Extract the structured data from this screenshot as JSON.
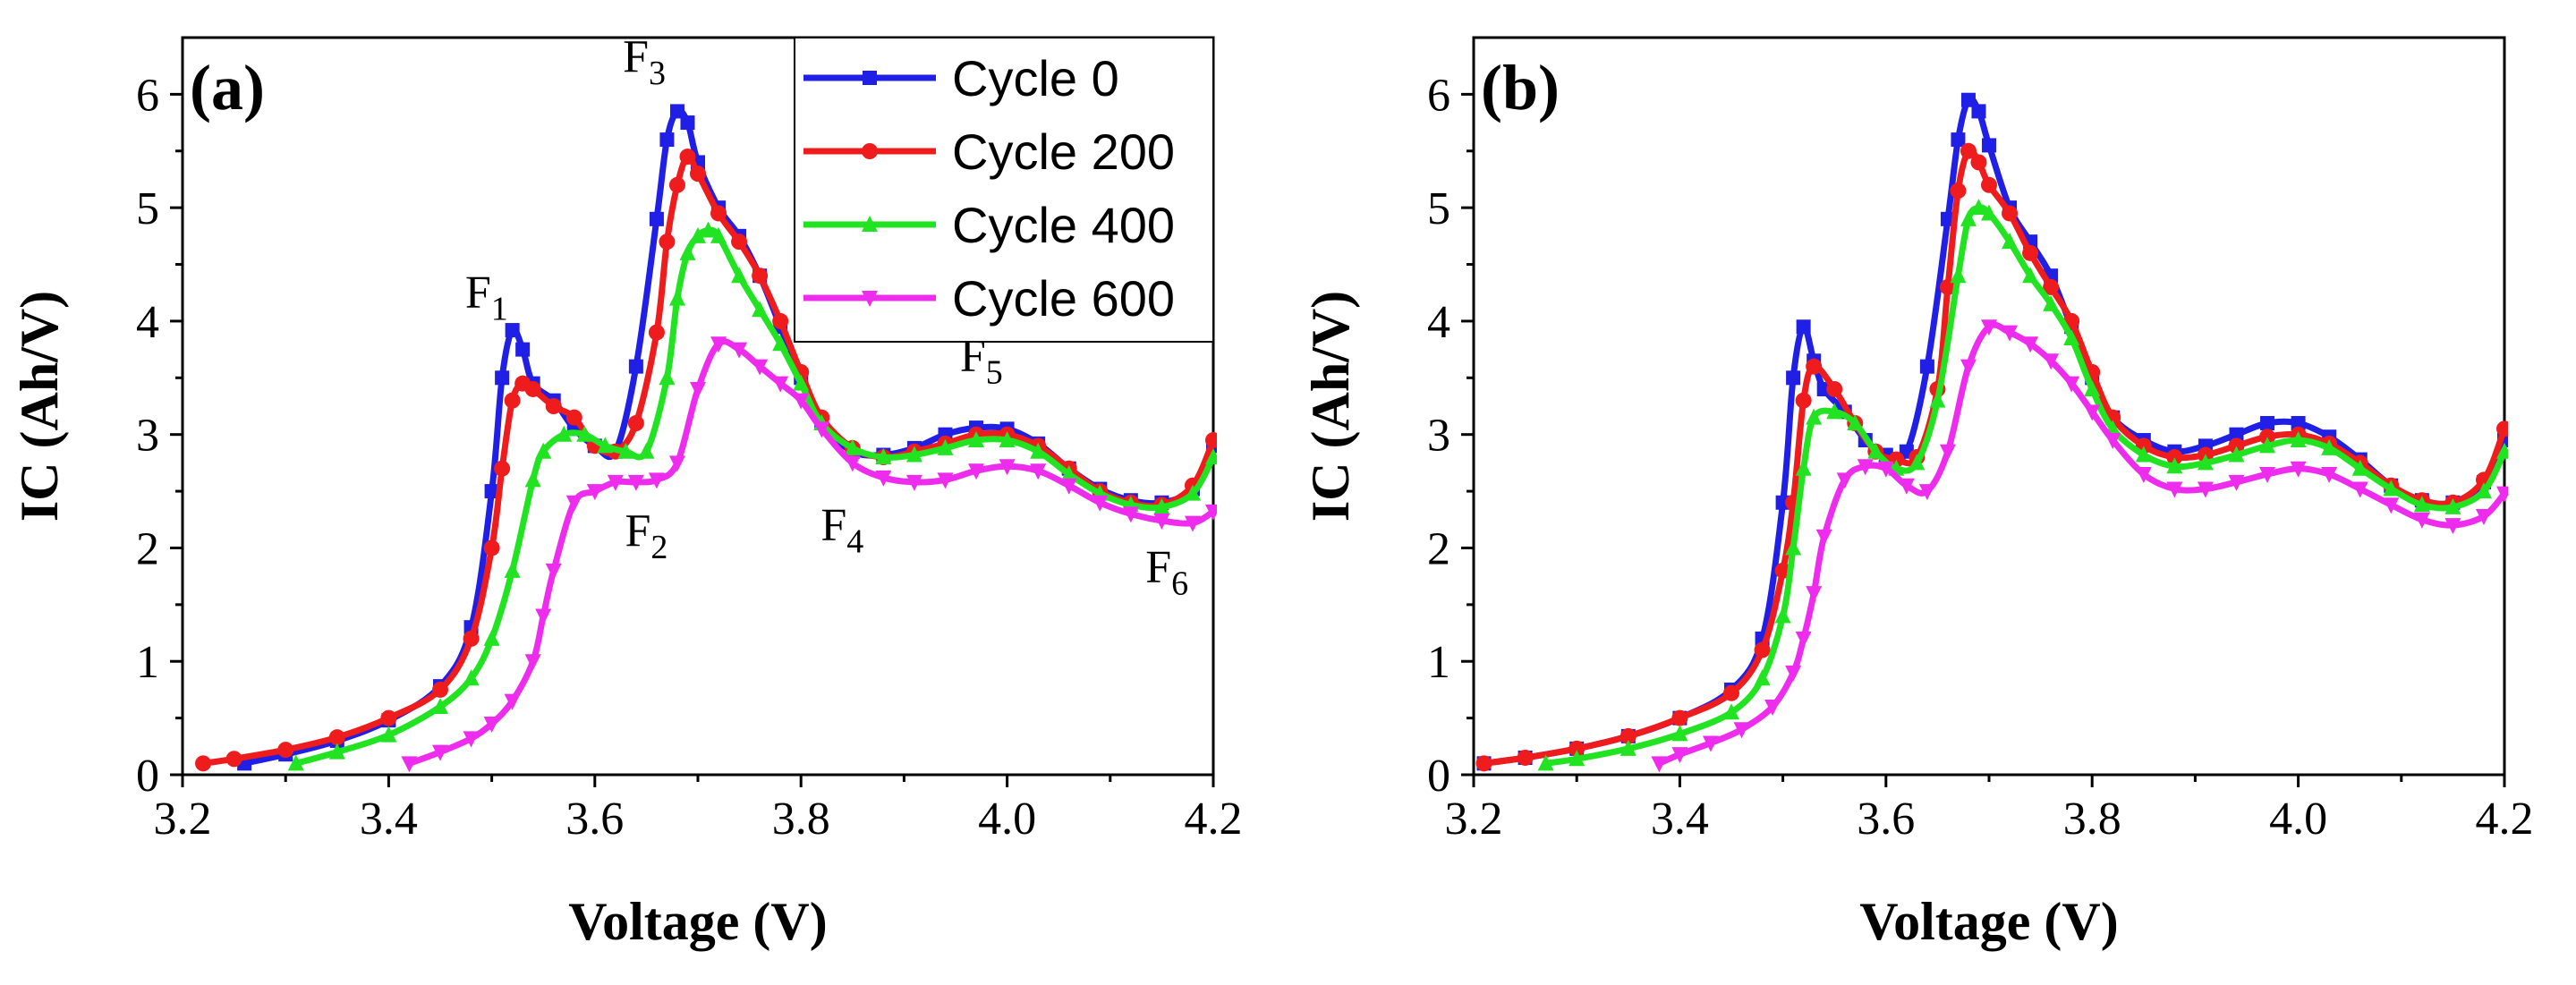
{
  "colors": {
    "cycle0": "#1f1fe6",
    "cycle200": "#ee1c1c",
    "cycle400": "#22e322",
    "cycle600": "#ee2cee"
  },
  "chart_data": [
    {
      "type": "line",
      "panel_label": "(a)",
      "xlabel": "Voltage (V)",
      "ylabel": "IC (Ah/V)",
      "xlim": [
        3.2,
        4.2
      ],
      "ylim": [
        0,
        6.5
      ],
      "xticks": [
        "3.2",
        "3.4",
        "3.6",
        "3.8",
        "4.0",
        "4.2"
      ],
      "yticks": [
        "0",
        "1",
        "2",
        "3",
        "4",
        "5",
        "6"
      ],
      "legend": {
        "placement": "top-right",
        "entries": [
          "Cycle 0",
          "Cycle 200",
          "Cycle 400",
          "Cycle 600"
        ]
      },
      "annotations": [
        {
          "base": "F",
          "sub": "1",
          "x": 3.495,
          "y": 4.12
        },
        {
          "base": "F",
          "sub": "2",
          "x": 3.65,
          "y": 2.02
        },
        {
          "base": "F",
          "sub": "3",
          "x": 3.648,
          "y": 6.2
        },
        {
          "base": "F",
          "sub": "4",
          "x": 3.84,
          "y": 2.07
        },
        {
          "base": "F",
          "sub": "5",
          "x": 3.975,
          "y": 3.56
        },
        {
          "base": "F",
          "sub": "6",
          "x": 4.155,
          "y": 1.7
        }
      ],
      "series": [
        {
          "name": "Cycle 0",
          "color_key": "cycle0",
          "marker": "square",
          "x": [
            3.26,
            3.3,
            3.35,
            3.4,
            3.45,
            3.48,
            3.5,
            3.51,
            3.52,
            3.53,
            3.54,
            3.56,
            3.58,
            3.6,
            3.62,
            3.64,
            3.66,
            3.67,
            3.68,
            3.69,
            3.7,
            3.72,
            3.74,
            3.76,
            3.78,
            3.8,
            3.82,
            3.85,
            3.88,
            3.91,
            3.94,
            3.97,
            4.0,
            4.03,
            4.06,
            4.09,
            4.12,
            4.15,
            4.18,
            4.2
          ],
          "y": [
            0.1,
            0.18,
            0.3,
            0.48,
            0.78,
            1.3,
            2.5,
            3.5,
            3.92,
            3.75,
            3.45,
            3.3,
            3.05,
            2.9,
            2.85,
            3.6,
            4.9,
            5.6,
            5.85,
            5.75,
            5.4,
            5.0,
            4.75,
            4.4,
            3.95,
            3.5,
            3.1,
            2.85,
            2.82,
            2.88,
            3.0,
            3.06,
            3.05,
            2.92,
            2.7,
            2.52,
            2.42,
            2.4,
            2.52,
            2.9
          ]
        },
        {
          "name": "Cycle 200",
          "color_key": "cycle200",
          "marker": "circle",
          "x": [
            3.22,
            3.25,
            3.3,
            3.35,
            3.4,
            3.45,
            3.48,
            3.5,
            3.51,
            3.52,
            3.53,
            3.54,
            3.56,
            3.58,
            3.6,
            3.62,
            3.64,
            3.66,
            3.67,
            3.68,
            3.69,
            3.7,
            3.72,
            3.74,
            3.76,
            3.78,
            3.8,
            3.82,
            3.85,
            3.88,
            3.91,
            3.94,
            3.97,
            4.0,
            4.03,
            4.06,
            4.09,
            4.12,
            4.15,
            4.18,
            4.2
          ],
          "y": [
            0.1,
            0.14,
            0.22,
            0.33,
            0.5,
            0.75,
            1.2,
            2.0,
            2.7,
            3.3,
            3.45,
            3.4,
            3.25,
            3.15,
            2.9,
            2.85,
            3.1,
            3.9,
            4.7,
            5.2,
            5.45,
            5.3,
            4.95,
            4.7,
            4.4,
            4.0,
            3.55,
            3.15,
            2.88,
            2.8,
            2.85,
            2.92,
            3.0,
            3.0,
            2.9,
            2.7,
            2.5,
            2.4,
            2.38,
            2.55,
            2.95
          ]
        },
        {
          "name": "Cycle 400",
          "color_key": "cycle400",
          "marker": "triangle-up",
          "x": [
            3.31,
            3.35,
            3.4,
            3.45,
            3.48,
            3.5,
            3.52,
            3.54,
            3.55,
            3.57,
            3.59,
            3.61,
            3.63,
            3.65,
            3.67,
            3.68,
            3.69,
            3.7,
            3.71,
            3.72,
            3.74,
            3.76,
            3.78,
            3.8,
            3.82,
            3.85,
            3.88,
            3.91,
            3.94,
            3.97,
            4.0,
            4.03,
            4.06,
            4.09,
            4.12,
            4.15,
            4.18,
            4.2
          ],
          "y": [
            0.1,
            0.2,
            0.35,
            0.6,
            0.85,
            1.2,
            1.8,
            2.6,
            2.85,
            3.0,
            3.0,
            2.9,
            2.85,
            2.85,
            3.5,
            4.2,
            4.6,
            4.75,
            4.8,
            4.75,
            4.4,
            4.1,
            3.8,
            3.45,
            3.1,
            2.88,
            2.8,
            2.82,
            2.88,
            2.95,
            2.95,
            2.85,
            2.65,
            2.48,
            2.38,
            2.36,
            2.48,
            2.8
          ]
        },
        {
          "name": "Cycle 600",
          "color_key": "cycle600",
          "marker": "triangle-down",
          "x": [
            3.42,
            3.45,
            3.48,
            3.5,
            3.52,
            3.54,
            3.55,
            3.56,
            3.58,
            3.6,
            3.62,
            3.64,
            3.66,
            3.68,
            3.7,
            3.72,
            3.74,
            3.76,
            3.78,
            3.8,
            3.82,
            3.85,
            3.88,
            3.91,
            3.94,
            3.97,
            4.0,
            4.03,
            4.06,
            4.09,
            4.12,
            4.15,
            4.18,
            4.2
          ],
          "y": [
            0.1,
            0.2,
            0.32,
            0.45,
            0.65,
            1.0,
            1.4,
            1.8,
            2.4,
            2.5,
            2.58,
            2.58,
            2.6,
            2.75,
            3.4,
            3.8,
            3.75,
            3.6,
            3.45,
            3.3,
            3.05,
            2.75,
            2.62,
            2.58,
            2.6,
            2.68,
            2.72,
            2.68,
            2.55,
            2.4,
            2.3,
            2.24,
            2.22,
            2.32
          ]
        }
      ]
    },
    {
      "type": "line",
      "panel_label": "(b)",
      "xlabel": "Voltage (V)",
      "ylabel": "IC (Ah/V)",
      "xlim": [
        3.2,
        4.2
      ],
      "ylim": [
        0,
        6.5
      ],
      "xticks": [
        "3.2",
        "3.4",
        "3.6",
        "3.8",
        "4.0",
        "4.2"
      ],
      "yticks": [
        "0",
        "1",
        "2",
        "3",
        "4",
        "5",
        "6"
      ],
      "series": [
        {
          "name": "Cycle 0",
          "color_key": "cycle0",
          "marker": "square",
          "x": [
            3.21,
            3.25,
            3.3,
            3.35,
            3.4,
            3.45,
            3.48,
            3.5,
            3.51,
            3.52,
            3.53,
            3.54,
            3.56,
            3.58,
            3.6,
            3.62,
            3.64,
            3.66,
            3.67,
            3.68,
            3.69,
            3.7,
            3.72,
            3.74,
            3.76,
            3.78,
            3.8,
            3.82,
            3.85,
            3.88,
            3.91,
            3.94,
            3.97,
            4.0,
            4.03,
            4.06,
            4.09,
            4.12,
            4.15,
            4.18,
            4.2
          ],
          "y": [
            0.1,
            0.15,
            0.23,
            0.34,
            0.5,
            0.75,
            1.2,
            2.4,
            3.5,
            3.95,
            3.65,
            3.4,
            3.2,
            2.95,
            2.82,
            2.85,
            3.6,
            4.9,
            5.6,
            5.95,
            5.85,
            5.55,
            5.0,
            4.7,
            4.4,
            3.95,
            3.5,
            3.15,
            2.95,
            2.85,
            2.9,
            3.0,
            3.1,
            3.1,
            2.98,
            2.78,
            2.55,
            2.42,
            2.4,
            2.58,
            2.95
          ]
        },
        {
          "name": "Cycle 200",
          "color_key": "cycle200",
          "marker": "circle",
          "x": [
            3.21,
            3.25,
            3.3,
            3.35,
            3.4,
            3.45,
            3.48,
            3.5,
            3.51,
            3.52,
            3.53,
            3.55,
            3.57,
            3.59,
            3.61,
            3.63,
            3.65,
            3.66,
            3.67,
            3.68,
            3.69,
            3.7,
            3.72,
            3.74,
            3.76,
            3.78,
            3.8,
            3.82,
            3.85,
            3.88,
            3.91,
            3.94,
            3.97,
            4.0,
            4.03,
            4.06,
            4.09,
            4.12,
            4.15,
            4.18,
            4.2
          ],
          "y": [
            0.1,
            0.15,
            0.23,
            0.34,
            0.5,
            0.72,
            1.1,
            1.8,
            2.4,
            3.3,
            3.6,
            3.4,
            3.1,
            2.85,
            2.78,
            2.8,
            3.4,
            4.3,
            5.15,
            5.5,
            5.4,
            5.2,
            4.95,
            4.6,
            4.3,
            4.0,
            3.55,
            3.15,
            2.9,
            2.8,
            2.82,
            2.9,
            2.98,
            3.0,
            2.92,
            2.75,
            2.55,
            2.42,
            2.4,
            2.6,
            3.05
          ]
        },
        {
          "name": "Cycle 400",
          "color_key": "cycle400",
          "marker": "triangle-up",
          "x": [
            3.27,
            3.3,
            3.35,
            3.4,
            3.45,
            3.48,
            3.5,
            3.51,
            3.52,
            3.53,
            3.55,
            3.57,
            3.59,
            3.61,
            3.63,
            3.65,
            3.67,
            3.68,
            3.69,
            3.7,
            3.72,
            3.74,
            3.76,
            3.78,
            3.8,
            3.82,
            3.85,
            3.88,
            3.91,
            3.94,
            3.97,
            4.0,
            4.03,
            4.06,
            4.09,
            4.12,
            4.15,
            4.18,
            4.2
          ],
          "y": [
            0.1,
            0.14,
            0.23,
            0.36,
            0.55,
            0.85,
            1.4,
            2.0,
            2.7,
            3.15,
            3.2,
            3.1,
            2.85,
            2.7,
            2.75,
            3.3,
            4.4,
            4.9,
            5.0,
            4.95,
            4.7,
            4.4,
            4.15,
            3.85,
            3.4,
            3.05,
            2.82,
            2.72,
            2.75,
            2.82,
            2.9,
            2.95,
            2.88,
            2.7,
            2.52,
            2.38,
            2.36,
            2.5,
            2.85
          ]
        },
        {
          "name": "Cycle 600",
          "color_key": "cycle600",
          "marker": "triangle-down",
          "x": [
            3.38,
            3.4,
            3.43,
            3.46,
            3.49,
            3.51,
            3.52,
            3.53,
            3.54,
            3.56,
            3.58,
            3.6,
            3.62,
            3.64,
            3.66,
            3.68,
            3.7,
            3.72,
            3.74,
            3.76,
            3.78,
            3.8,
            3.82,
            3.85,
            3.88,
            3.91,
            3.94,
            3.97,
            4.0,
            4.03,
            4.06,
            4.09,
            4.12,
            4.15,
            4.18,
            4.2
          ],
          "y": [
            0.1,
            0.18,
            0.28,
            0.4,
            0.6,
            0.9,
            1.2,
            1.6,
            2.1,
            2.6,
            2.72,
            2.7,
            2.55,
            2.5,
            2.85,
            3.6,
            3.95,
            3.9,
            3.8,
            3.65,
            3.45,
            3.2,
            2.95,
            2.65,
            2.52,
            2.52,
            2.58,
            2.65,
            2.7,
            2.65,
            2.52,
            2.38,
            2.25,
            2.2,
            2.28,
            2.48
          ]
        }
      ]
    }
  ]
}
